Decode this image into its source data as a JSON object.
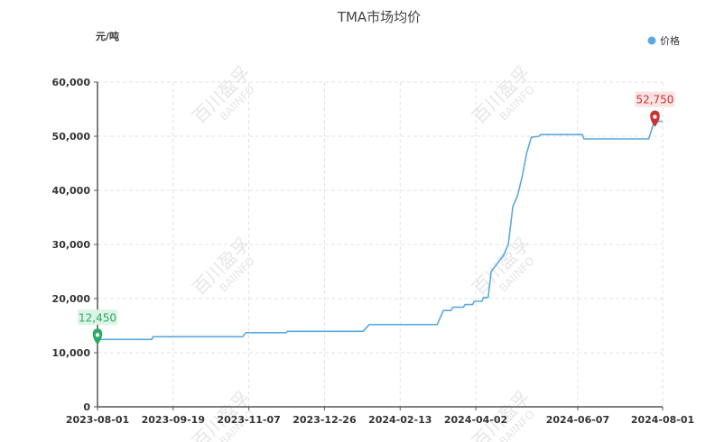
{
  "chart_data": {
    "type": "line",
    "title": "TMA市场均价",
    "ylabel": "元/吨",
    "legend": {
      "position": "top-right",
      "entries": [
        "价格"
      ]
    },
    "ylim": [
      0,
      60000
    ],
    "y_ticks": [
      "0",
      "10,000",
      "20,000",
      "30,000",
      "40,000",
      "50,000",
      "60,000"
    ],
    "x_ticks": [
      "2023-08-01",
      "2023-09-19",
      "2023-11-07",
      "2023-12-26",
      "2024-02-13",
      "2024-04-02",
      "2024-06-07",
      "2024-08-01"
    ],
    "grid": true,
    "series": [
      {
        "name": "价格",
        "color": "#5aa9e0",
        "points": [
          [
            "2023-08-01",
            12450
          ],
          [
            "2023-09-05",
            12450
          ],
          [
            "2023-09-06",
            12950
          ],
          [
            "2023-11-03",
            12950
          ],
          [
            "2023-11-05",
            13700
          ],
          [
            "2023-12-01",
            13700
          ],
          [
            "2023-12-02",
            13950
          ],
          [
            "2024-01-20",
            13950
          ],
          [
            "2024-01-24",
            15200
          ],
          [
            "2024-03-08",
            15200
          ],
          [
            "2024-03-10",
            16500
          ],
          [
            "2024-03-12",
            17800
          ],
          [
            "2024-03-17",
            17800
          ],
          [
            "2024-03-18",
            18400
          ],
          [
            "2024-03-25",
            18400
          ],
          [
            "2024-03-26",
            18900
          ],
          [
            "2024-03-31",
            18900
          ],
          [
            "2024-04-01",
            19500
          ],
          [
            "2024-04-06",
            19500
          ],
          [
            "2024-04-07",
            20200
          ],
          [
            "2024-04-10",
            20200
          ],
          [
            "2024-04-12",
            25000
          ],
          [
            "2024-04-16",
            26500
          ],
          [
            "2024-04-20",
            28000
          ],
          [
            "2024-04-23",
            30000
          ],
          [
            "2024-04-26",
            37000
          ],
          [
            "2024-04-29",
            39000
          ],
          [
            "2024-05-02",
            42500
          ],
          [
            "2024-05-05",
            47000
          ],
          [
            "2024-05-08",
            49800
          ],
          [
            "2024-05-13",
            50000
          ],
          [
            "2024-05-14",
            50300
          ],
          [
            "2024-06-10",
            50300
          ],
          [
            "2024-06-11",
            49500
          ],
          [
            "2024-07-23",
            49500
          ],
          [
            "2024-07-26",
            52200
          ],
          [
            "2024-07-27",
            52750
          ],
          [
            "2024-08-01",
            52750
          ]
        ]
      }
    ],
    "annotations": [
      {
        "type": "min",
        "date": "2023-08-01",
        "value": 12450,
        "label": "12,450",
        "color": "#2eaa66"
      },
      {
        "type": "max",
        "date": "2024-07-27",
        "value": 52750,
        "label": "52,750",
        "color": "#cc3333"
      }
    ],
    "watermark": {
      "text_cn": "百川盈孚",
      "text_en": "BAIINFO"
    }
  }
}
